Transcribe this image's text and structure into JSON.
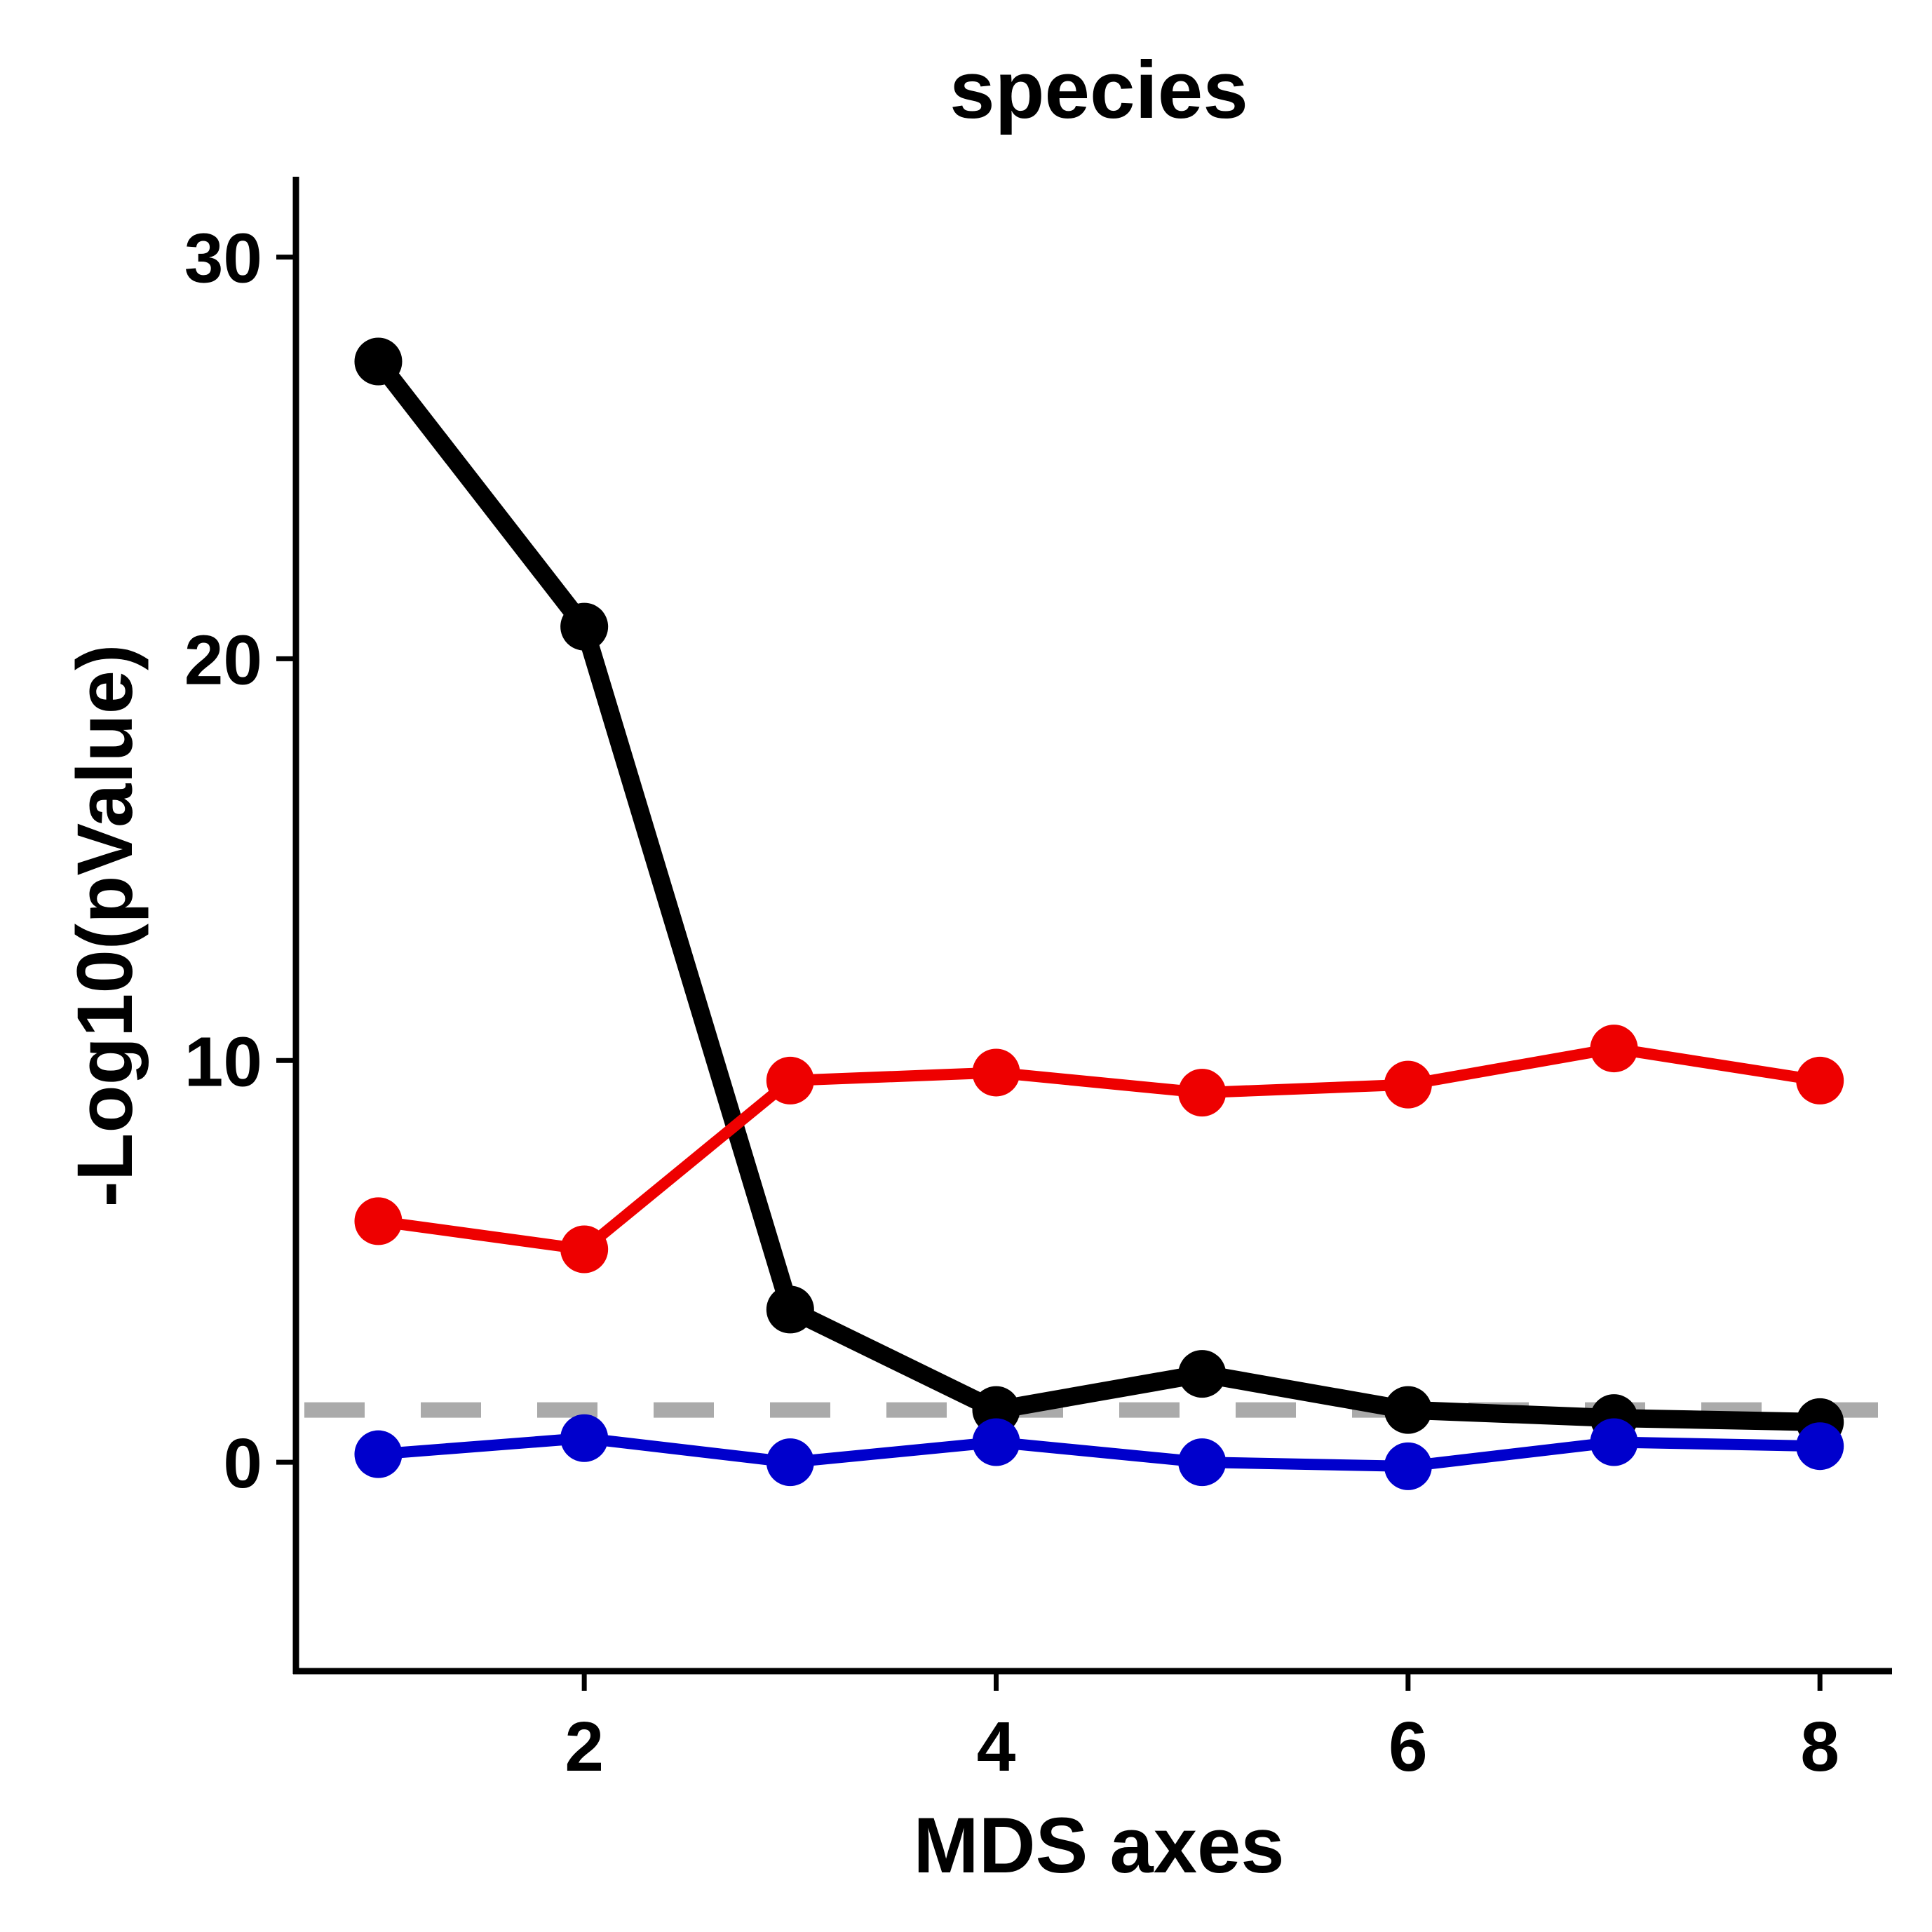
{
  "chart_data": {
    "type": "line",
    "title": "species",
    "xlabel": "MDS axes",
    "ylabel": "-Log10(pValue)",
    "x": [
      1,
      2,
      3,
      4,
      5,
      6,
      7,
      8
    ],
    "xlim": [
      0.6,
      8.35
    ],
    "ylim": [
      -5.2,
      32
    ],
    "x_ticks": [
      2,
      4,
      6,
      8
    ],
    "x_tick_labels": [
      "2",
      "4",
      "6",
      "8"
    ],
    "y_ticks": [
      0,
      10,
      20,
      30
    ],
    "y_tick_labels": [
      "0",
      "10",
      "20",
      "30"
    ],
    "grid": false,
    "legend": "none",
    "series": [
      {
        "color": "#000000",
        "values": [
          27.4,
          20.8,
          3.8,
          1.3,
          2.2,
          1.3,
          1.1,
          1.0
        ]
      },
      {
        "color": "#ee0000",
        "values": [
          6.0,
          5.3,
          9.5,
          9.7,
          9.2,
          9.4,
          10.3,
          9.5
        ]
      },
      {
        "color": "#0000cc",
        "values": [
          0.2,
          0.6,
          0.0,
          0.5,
          0.0,
          -0.1,
          0.5,
          0.4
        ]
      }
    ],
    "reference_line": {
      "y": 1.3,
      "color": "#aaaaaa",
      "style": "dashed"
    }
  }
}
